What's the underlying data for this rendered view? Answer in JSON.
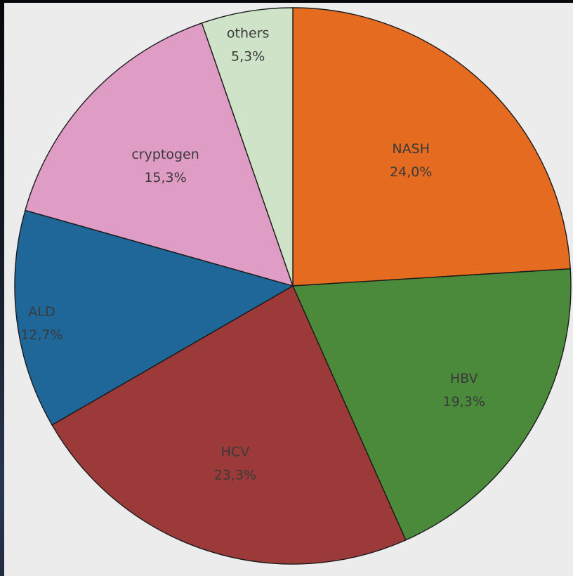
{
  "chart_data": {
    "type": "pie",
    "start_angle_deg": 0,
    "direction": "clockwise",
    "slices": [
      {
        "label": "NASH",
        "value": 24.0,
        "text": "24,0%",
        "color": "#e46b20"
      },
      {
        "label": "HBV",
        "value": 19.3,
        "text": "19,3%",
        "color": "#4a8a3a"
      },
      {
        "label": "HCV",
        "value": 23.3,
        "text": "23,3%",
        "color": "#9b3a38"
      },
      {
        "label": "ALD",
        "value": 12.7,
        "text": "12,7%",
        "color": "#1f6699"
      },
      {
        "label": "cryptogen",
        "value": 15.3,
        "text": "15,3%",
        "color": "#df9cc4"
      },
      {
        "label": "others",
        "value": 5.3,
        "text": "5,3%",
        "color": "#cfe3c8"
      }
    ]
  }
}
